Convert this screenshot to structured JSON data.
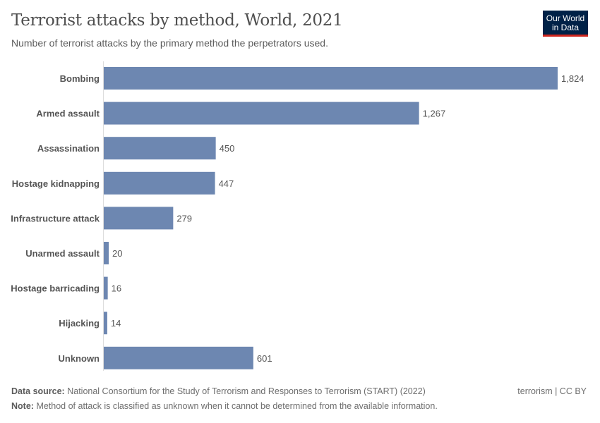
{
  "title": "Terrorist attacks by method, World, 2021",
  "subtitle": "Number of terrorist attacks by the primary method the perpetrators used.",
  "logo": {
    "line1": "Our World",
    "line2": "in Data",
    "bg": "#002147",
    "accent": "#ce261e"
  },
  "footer": {
    "source_label": "Data source:",
    "source": "National Consortium for the Study of Terrorism and Responses to Terrorism (START) (2022)",
    "note_label": "Note:",
    "note": "Method of attack is classified as unknown when it cannot be determined from the available information.",
    "license": "terrorism | CC BY"
  },
  "chart_data": {
    "type": "bar",
    "orientation": "horizontal",
    "title": "Terrorist attacks by method, World, 2021",
    "categories": [
      "Bombing",
      "Armed assault",
      "Assassination",
      "Hostage kidnapping",
      "Infrastructure attack",
      "Unarmed assault",
      "Hostage barricading",
      "Hijacking",
      "Unknown"
    ],
    "values": [
      1824,
      1267,
      450,
      447,
      279,
      20,
      16,
      14,
      601
    ],
    "labels": [
      "1,824",
      "1,267",
      "450",
      "447",
      "279",
      "20",
      "16",
      "14",
      "601"
    ],
    "xlim": [
      0,
      1824
    ],
    "color": "#6d87b1",
    "grid": false
  }
}
